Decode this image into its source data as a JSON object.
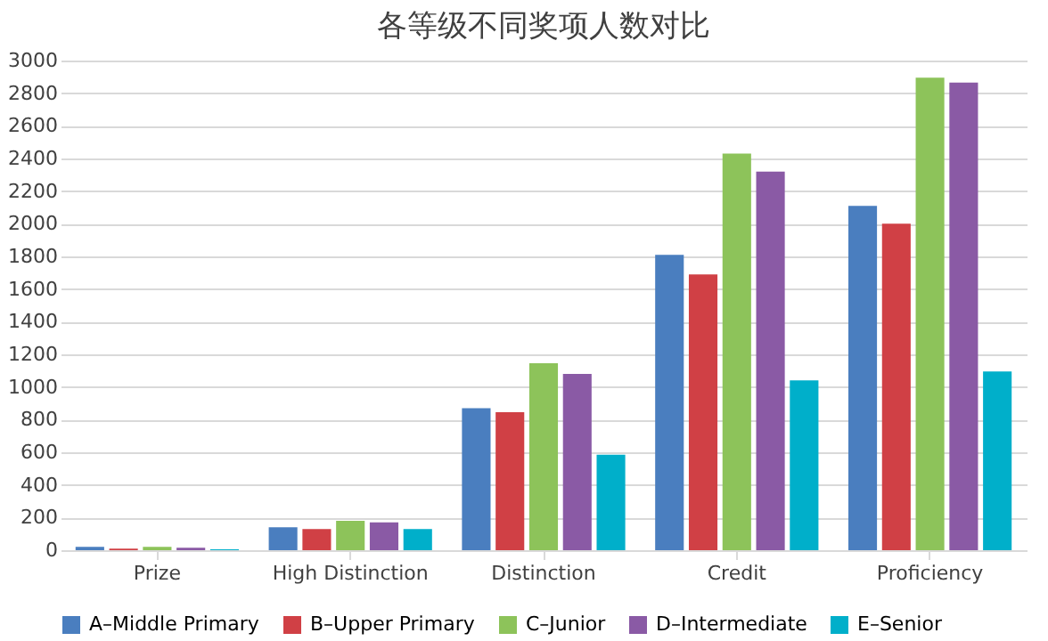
{
  "chart_data": {
    "type": "bar",
    "title": "各等级不同奖项人数对比",
    "categories": [
      "Prize",
      "High Distinction",
      "Distinction",
      "Credit",
      "Proficiency"
    ],
    "series": [
      {
        "name": "A–Middle Primary",
        "color": "#4a7ebf",
        "values": [
          20,
          140,
          870,
          1810,
          2110
        ]
      },
      {
        "name": "B–Upper Primary",
        "color": "#d04045",
        "values": [
          10,
          130,
          845,
          1690,
          2000
        ]
      },
      {
        "name": "C–Junior",
        "color": "#8dc35a",
        "values": [
          20,
          180,
          1145,
          2430,
          2895
        ]
      },
      {
        "name": "D–Intermediate",
        "color": "#8a5aa5",
        "values": [
          15,
          170,
          1080,
          2320,
          2865
        ]
      },
      {
        "name": "E–Senior",
        "color": "#00afca",
        "values": [
          5,
          130,
          585,
          1040,
          1095
        ]
      }
    ],
    "ylim": [
      0,
      3000
    ],
    "yticks": [
      0,
      200,
      400,
      600,
      800,
      1000,
      1200,
      1400,
      1600,
      1800,
      2000,
      2200,
      2400,
      2600,
      2800,
      3000
    ],
    "grid": "y",
    "legend": "bottom"
  }
}
